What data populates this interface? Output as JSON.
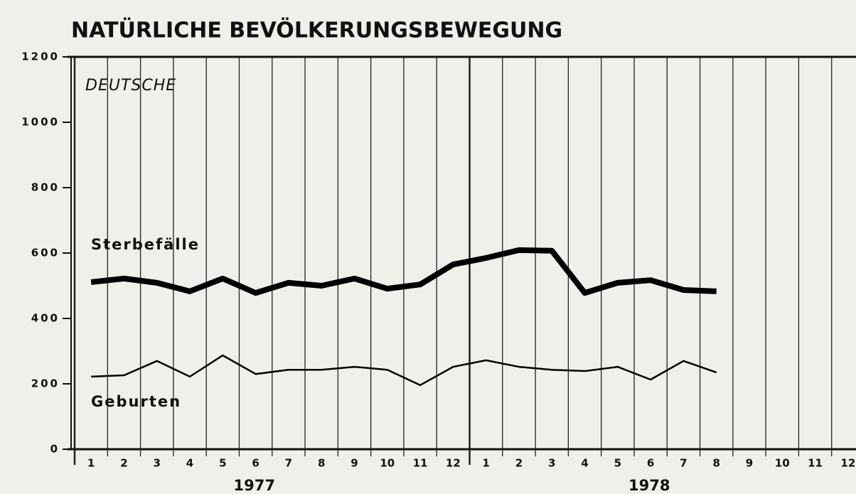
{
  "chart_data": {
    "type": "line",
    "title": "NATÜRLICHE BEVÖLKERUNGSBEWEGUNG",
    "subtitle": "DEUTSCHE",
    "categories": [
      "1",
      "2",
      "3",
      "4",
      "5",
      "6",
      "7",
      "8",
      "9",
      "10",
      "11",
      "12",
      "1",
      "2",
      "3",
      "4",
      "5",
      "6",
      "7",
      "8",
      "9",
      "10",
      "11",
      "12"
    ],
    "years": [
      "1977",
      "1978"
    ],
    "series": [
      {
        "name": "Sterbefälle",
        "color": "#000000",
        "values": [
          511,
          522,
          509,
          483,
          522,
          478,
          509,
          500,
          522,
          491,
          504,
          565,
          585,
          609,
          607,
          478,
          509,
          517,
          487,
          483,
          null,
          null,
          null,
          null
        ]
      },
      {
        "name": "Geburten",
        "color": "#000000",
        "values": [
          222,
          226,
          270,
          222,
          287,
          230,
          243,
          243,
          252,
          243,
          196,
          252,
          272,
          252,
          243,
          239,
          252,
          213,
          270,
          235,
          null,
          null,
          null,
          null
        ]
      }
    ],
    "ylim": [
      0,
      1200
    ],
    "yticks": [
      0,
      200,
      400,
      600,
      800,
      1000,
      1200
    ]
  }
}
